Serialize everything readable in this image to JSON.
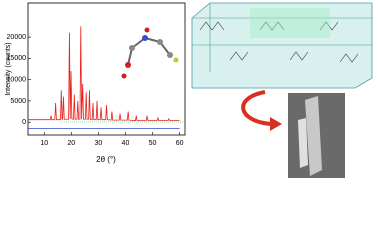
{
  "chart_data": {
    "type": "line",
    "y_label": "Intensity (counts)",
    "x_label": "2θ (°)",
    "xlim": [
      4,
      62
    ],
    "ylim": [
      -3000,
      28000
    ],
    "xticks": [
      10,
      20,
      30,
      40,
      50,
      60
    ],
    "yticks": [
      0,
      5000,
      10000,
      15000,
      20000
    ],
    "series": [
      {
        "color": "#e8201c",
        "x": [
          4,
          12.2,
          12.5,
          12.8,
          13.9,
          14.2,
          14.5,
          16.0,
          16.3,
          16.6,
          16.8,
          17.1,
          17.4,
          19.0,
          19.3,
          19.6,
          19.9,
          20.2,
          20.8,
          21.1,
          21.4,
          22.1,
          22.4,
          22.7,
          23.2,
          23.5,
          23.8,
          24.2,
          24.5,
          25.2,
          25.5,
          25.8,
          26.4,
          26.7,
          27.0,
          27.7,
          28.0,
          28.3,
          29.2,
          29.5,
          29.8,
          30.7,
          31.0,
          31.3,
          32.7,
          33.0,
          33.3,
          34.7,
          35.0,
          35.3,
          37.7,
          38.0,
          38.3,
          40.7,
          41.0,
          41.3,
          43.7,
          44.0,
          44.3,
          47.7,
          48.0,
          48.3,
          51.7,
          52.0,
          52.3,
          55.7,
          56.0,
          56.3,
          60
        ],
        "values": [
          600,
          600,
          1500,
          600,
          600,
          4500,
          600,
          600,
          7500,
          700,
          700,
          6000,
          700,
          700,
          21000,
          800,
          12000,
          800,
          700,
          6500,
          700,
          700,
          5000,
          700,
          700,
          22500,
          700,
          9000,
          700,
          700,
          7000,
          700,
          700,
          7500,
          700,
          600,
          4500,
          600,
          600,
          5000,
          600,
          600,
          3500,
          600,
          600,
          4000,
          600,
          500,
          2500,
          500,
          500,
          2000,
          500,
          500,
          2500,
          500,
          400,
          1500,
          400,
          400,
          1500,
          400,
          400,
          1000,
          400,
          400,
          800,
          400,
          400
        ]
      },
      {
        "color": "#2a46c8",
        "x": [
          4,
          60
        ],
        "values": [
          -1500,
          -1500
        ]
      }
    ]
  }
}
